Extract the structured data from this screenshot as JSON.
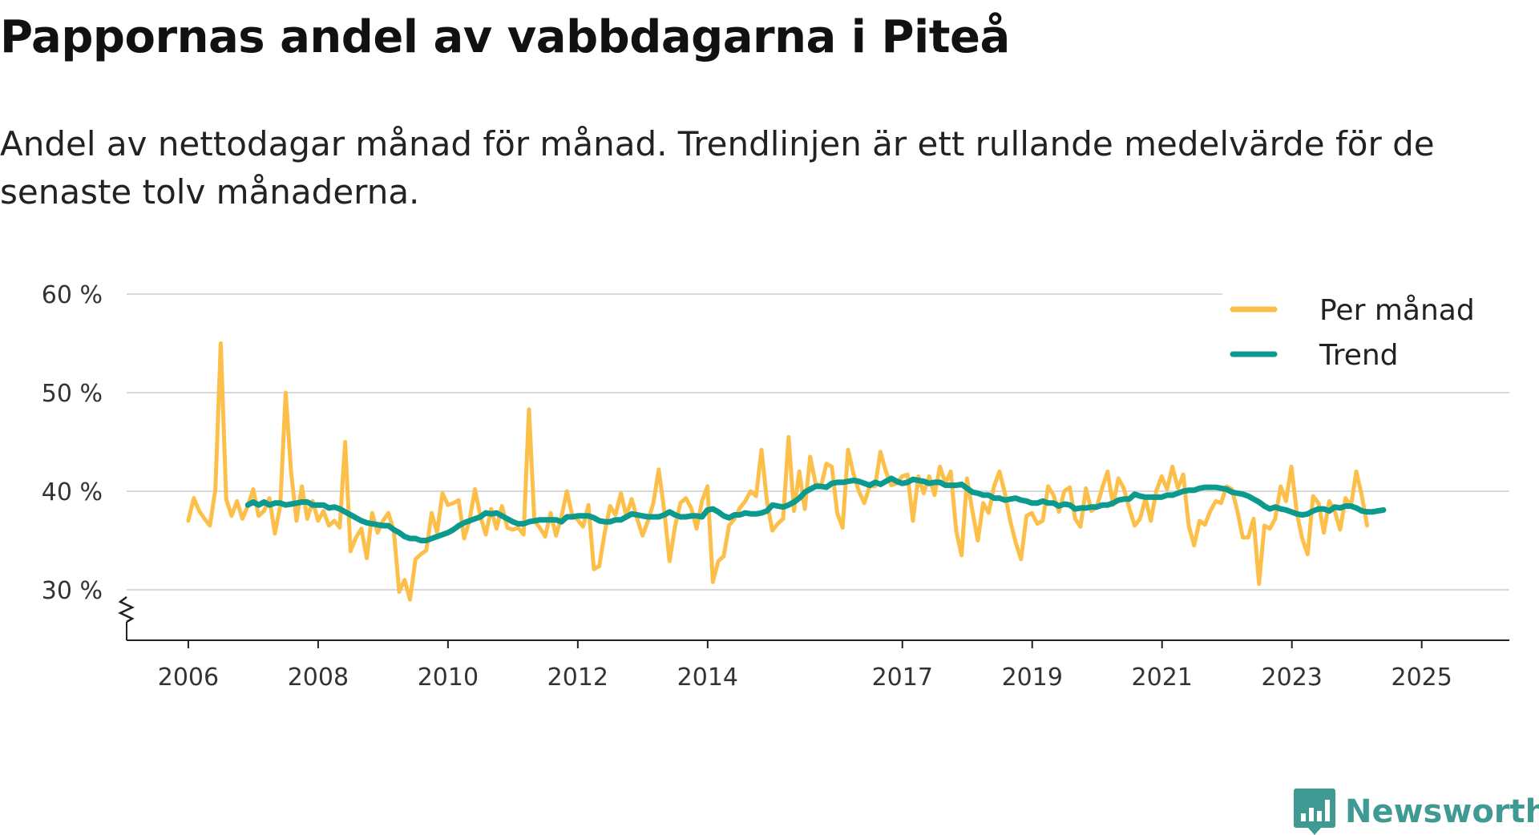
{
  "title": "Pappornas andel av vabbdagarna i Piteå",
  "subtitle": "Andel av nettodagar månad för månad. Trendlinjen är ett rullande medelvärde för de senaste tolv månaderna.",
  "brand": {
    "name": "Newsworthy",
    "icon": "newsworthy-logo-icon",
    "color": "#3f9a93"
  },
  "chart_data": {
    "type": "line",
    "title": "Pappornas andel av vabbdagarna i Piteå",
    "xlabel": "",
    "ylabel": "",
    "y_ticks": [
      30,
      40,
      50,
      60
    ],
    "y_tick_labels": [
      "30 %",
      "40 %",
      "50 %",
      "60 %"
    ],
    "ylim": [
      25,
      60
    ],
    "y_axis_break": true,
    "x_ticks": [
      2006,
      2008,
      2010,
      2012,
      2014,
      2017,
      2019,
      2021,
      2023,
      2025
    ],
    "x_tick_labels": [
      "2006",
      "2008",
      "2010",
      "2012",
      "2014",
      "2017",
      "2019",
      "2021",
      "2023",
      "2025"
    ],
    "xlim": [
      2005.05,
      2026.35
    ],
    "grid": "horizontal",
    "legend_position": "top-right",
    "series": [
      {
        "name": "Per månad",
        "color": "#fcbf49",
        "x_start": 2006.0,
        "step": 0.0833,
        "values": [
          37.0,
          39.3,
          38.0,
          37.2,
          36.5,
          40.2,
          55.0,
          39.2,
          37.5,
          39.0,
          37.2,
          38.5,
          40.2,
          37.5,
          38.0,
          39.3,
          35.7,
          38.5,
          50.0,
          42.0,
          37.0,
          40.5,
          37.2,
          39.0,
          37.0,
          38.0,
          36.5,
          37.0,
          36.3,
          45.0,
          33.9,
          35.3,
          36.2,
          33.2,
          37.8,
          35.8,
          37.0,
          37.8,
          36.0,
          29.8,
          31.0,
          29.0,
          33.1,
          33.6,
          34.0,
          37.8,
          35.8,
          39.8,
          38.6,
          38.8,
          39.1,
          35.2,
          37.0,
          40.2,
          37.5,
          35.6,
          38.2,
          36.2,
          38.5,
          36.3,
          36.1,
          36.3,
          35.6,
          48.3,
          37.0,
          36.3,
          35.4,
          37.8,
          35.5,
          37.4,
          40.0,
          37.6,
          37.1,
          36.4,
          38.6,
          32.1,
          32.4,
          35.8,
          38.5,
          37.6,
          39.8,
          37.5,
          39.2,
          37.2,
          35.5,
          37.0,
          38.8,
          42.2,
          38.1,
          32.9,
          36.4,
          38.8,
          39.3,
          38.3,
          36.2,
          39.0,
          40.5,
          30.8,
          32.9,
          33.4,
          36.5,
          37.2,
          38.3,
          39.0,
          40.0,
          39.5,
          44.2,
          39.0,
          36.0,
          36.7,
          37.2,
          45.5,
          38.0,
          42.0,
          38.2,
          43.5,
          40.8,
          40.5,
          42.8,
          42.5,
          37.8,
          36.3,
          44.2,
          41.8,
          40.0,
          38.8,
          40.5,
          40.5,
          44.0,
          42.0,
          40.6,
          40.8,
          41.5,
          41.7,
          37.0,
          41.5,
          39.8,
          41.5,
          39.6,
          42.5,
          40.8,
          42.0,
          36.0,
          33.5,
          41.3,
          38.0,
          35.0,
          38.8,
          37.8,
          40.5,
          42.0,
          39.8,
          37.0,
          34.8,
          33.1,
          37.5,
          37.8,
          36.7,
          37.0,
          40.5,
          39.6,
          37.9,
          40.0,
          40.4,
          37.2,
          36.4,
          40.3,
          38.0,
          38.4,
          40.3,
          42.0,
          38.6,
          41.3,
          40.3,
          38.3,
          36.5,
          37.2,
          39.3,
          37.0,
          40.0,
          41.5,
          40.2,
          42.5,
          40.3,
          41.7,
          36.5,
          34.5,
          37.0,
          36.6,
          38.0,
          39.0,
          38.8,
          40.5,
          40.2,
          38.0,
          35.3,
          35.3,
          37.2,
          30.6,
          36.5,
          36.2,
          37.2,
          40.5,
          39.0,
          42.5,
          37.8,
          35.2,
          33.6,
          39.5,
          38.8,
          35.8,
          39.0,
          38.0,
          36.1,
          39.3,
          38.5,
          42.0,
          39.6,
          36.5
        ]
      },
      {
        "name": "Trend",
        "color": "#0d9a8e",
        "x_start": 2006.917,
        "step": 0.0833,
        "values": [
          38.6,
          38.9,
          38.6,
          38.9,
          38.6,
          38.8,
          38.8,
          38.6,
          38.7,
          38.8,
          38.9,
          38.9,
          38.6,
          38.6,
          38.6,
          38.3,
          38.4,
          38.2,
          37.9,
          37.6,
          37.3,
          37.0,
          36.8,
          36.7,
          36.6,
          36.5,
          36.5,
          36.1,
          35.8,
          35.4,
          35.2,
          35.2,
          35.0,
          35.0,
          35.2,
          35.4,
          35.6,
          35.8,
          36.1,
          36.5,
          36.8,
          37.0,
          37.2,
          37.4,
          37.8,
          37.7,
          37.8,
          37.5,
          37.2,
          36.9,
          36.7,
          36.7,
          36.9,
          37.0,
          37.1,
          37.1,
          37.1,
          37.1,
          36.9,
          37.4,
          37.4,
          37.5,
          37.5,
          37.5,
          37.3,
          37.0,
          36.9,
          36.9,
          37.1,
          37.1,
          37.4,
          37.7,
          37.6,
          37.5,
          37.4,
          37.4,
          37.4,
          37.6,
          37.9,
          37.6,
          37.4,
          37.4,
          37.5,
          37.5,
          37.4,
          38.1,
          38.2,
          37.9,
          37.5,
          37.3,
          37.6,
          37.6,
          37.8,
          37.7,
          37.7,
          37.8,
          38.0,
          38.6,
          38.5,
          38.4,
          38.6,
          38.9,
          39.3,
          39.9,
          40.2,
          40.5,
          40.5,
          40.4,
          40.8,
          40.9,
          40.9,
          41.0,
          41.1,
          41.0,
          40.8,
          40.6,
          40.9,
          40.7,
          41.0,
          41.3,
          41.0,
          40.8,
          40.9,
          41.2,
          41.1,
          41.0,
          40.8,
          40.9,
          40.9,
          40.6,
          40.6,
          40.6,
          40.7,
          40.3,
          39.9,
          39.8,
          39.6,
          39.6,
          39.3,
          39.3,
          39.1,
          39.2,
          39.3,
          39.1,
          39.0,
          38.8,
          38.8,
          39.0,
          38.8,
          38.8,
          38.5,
          38.7,
          38.6,
          38.2,
          38.3,
          38.3,
          38.4,
          38.4,
          38.6,
          38.6,
          38.8,
          39.1,
          39.2,
          39.2,
          39.7,
          39.5,
          39.4,
          39.4,
          39.4,
          39.4,
          39.6,
          39.6,
          39.8,
          40.0,
          40.1,
          40.1,
          40.3,
          40.4,
          40.4,
          40.4,
          40.3,
          40.2,
          39.9,
          39.8,
          39.7,
          39.5,
          39.2,
          38.9,
          38.5,
          38.2,
          38.4,
          38.2,
          38.1,
          37.9,
          37.7,
          37.6,
          37.7,
          38.0,
          38.2,
          38.2,
          38.0,
          38.4,
          38.3,
          38.5,
          38.5,
          38.3,
          38.0,
          37.9,
          37.9,
          38.0,
          38.1
        ]
      }
    ]
  }
}
